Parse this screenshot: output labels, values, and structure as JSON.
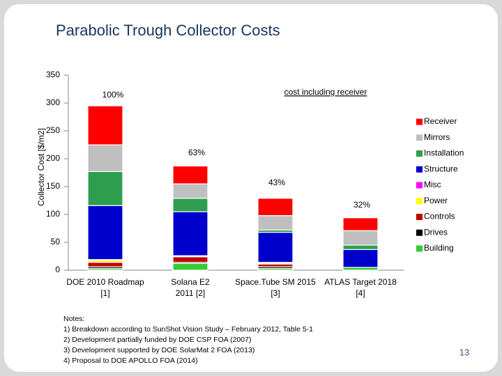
{
  "chart_data": {
    "type": "stacked_bar",
    "title": "Parabolic Trough Collector Costs",
    "y_label": "Collector Cost [$/m2]",
    "categories": [
      "DOE 2010 Roadmap\n[1]",
      "Solana E2\n2011 [2]",
      "Space.Tube SM 2015\n[3]",
      "ATLAS Target 2018\n[4]"
    ],
    "series": [
      {
        "name": "Building",
        "color": "#33cc33",
        "values": [
          3,
          12,
          3,
          5
        ]
      },
      {
        "name": "Drives",
        "color": "#000000",
        "values": [
          3,
          2,
          3,
          0
        ]
      },
      {
        "name": "Controls",
        "color": "#c00000",
        "values": [
          8,
          10,
          5,
          0
        ]
      },
      {
        "name": "Power",
        "color": "#ffff00",
        "values": [
          4,
          1,
          2,
          0
        ]
      },
      {
        "name": "Misc",
        "color": "#ff00ff",
        "values": [
          1,
          1,
          1,
          0
        ]
      },
      {
        "name": "Structure",
        "color": "#0000cc",
        "values": [
          97,
          79,
          54,
          32
        ]
      },
      {
        "name": "Installation",
        "color": "#2e9e4e",
        "values": [
          61,
          24,
          4,
          8
        ]
      },
      {
        "name": "Mirrors",
        "color": "#bfbfbf",
        "values": [
          48,
          26,
          26,
          26
        ]
      },
      {
        "name": "Receiver",
        "color": "#ff0000",
        "values": [
          70,
          32,
          31,
          23
        ]
      }
    ],
    "ylim": [
      0,
      350
    ],
    "yticks": [
      0,
      50,
      100,
      150,
      200,
      250,
      300,
      350
    ],
    "annotations": [
      "100%",
      "cost including receiver",
      "63%",
      "43%",
      "32%"
    ]
  },
  "notes": [
    "Notes:",
    "1) Breakdown according to SunShot Vision Study – February 2012, Table 5-1",
    "2) Development partially funded by DOE CSP FOA (2007)",
    "3) Development supported by DOE SolarMat 2 FOA (2013)",
    "4) Proposal to DOE APOLLO FOA (2014)"
  ],
  "page_number": "13"
}
